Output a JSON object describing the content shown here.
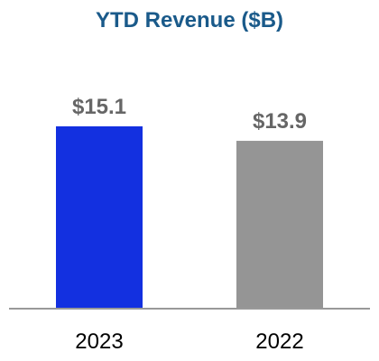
{
  "chart_data": {
    "type": "bar",
    "title": "YTD Revenue ($B)",
    "xlabel": "",
    "ylabel": "",
    "categories": [
      "2023",
      "2022"
    ],
    "values": [
      15.1,
      13.9
    ],
    "value_labels": [
      "$15.1",
      "$13.9"
    ],
    "ylim": [
      0,
      17.6
    ],
    "grid": false,
    "legend": "none",
    "colors": {
      "title": "#1a5a8a",
      "bars": [
        "#1330e0",
        "#959595"
      ],
      "value_label": "#666666",
      "axis": "#999999"
    }
  }
}
